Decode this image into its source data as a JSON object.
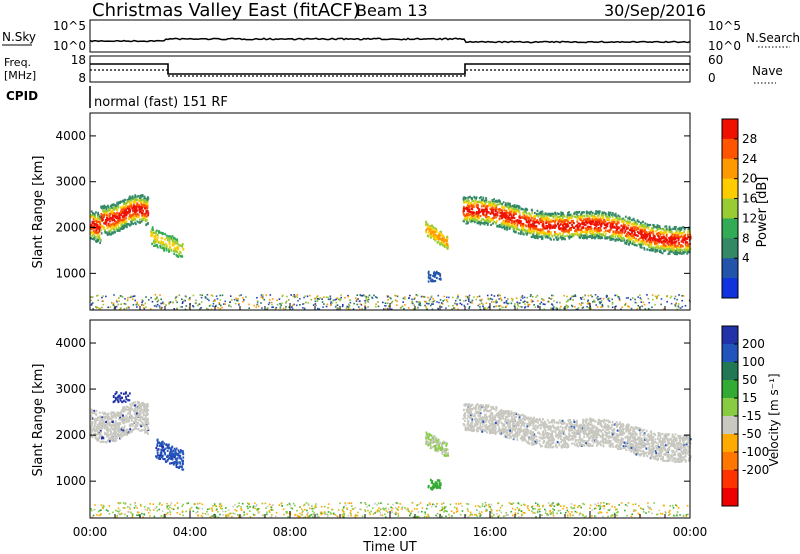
{
  "header": {
    "title": "Christmas Valley East (fitACF)",
    "beam": "Beam 13",
    "date": "30/Sep/2016"
  },
  "colors": {
    "frame": "#000000",
    "dots_noise": "#223399",
    "dots_power_low": "#3355bb",
    "gray_velocity": "#c8c8c0"
  },
  "top_panels": {
    "nsky": {
      "label": "N.Sky",
      "left_ticks": [
        "10^5",
        "10^0"
      ],
      "right_ticks": [
        "10^5",
        "10^0"
      ],
      "right_label": "N.Search"
    },
    "freq": {
      "label_line1": "Freq.",
      "label_line2": "[MHz]",
      "left_ticks": [
        "18",
        "8"
      ],
      "right_ticks": [
        "60",
        "0"
      ],
      "right_label": "Nave"
    },
    "cpid": {
      "label": "CPID",
      "text": "normal (fast) 151 RF"
    }
  },
  "chart_data": [
    {
      "type": "heatmap",
      "title": "",
      "ylabel": "Slant Range [km]",
      "xlabel": "",
      "ylim": [
        200,
        4500
      ],
      "yticks": [
        1000,
        2000,
        3000,
        4000
      ],
      "xlim_hours": [
        0,
        24
      ],
      "colorbar": {
        "label": "Power [dB]",
        "ticks": [
          "28",
          "24",
          "20",
          "16",
          "12",
          "8",
          "4"
        ],
        "colors": [
          "#ee1100",
          "#ff5500",
          "#ff9900",
          "#ffcc00",
          "#99cc33",
          "#33aa55",
          "#338866",
          "#2255aa",
          "#1133dd"
        ]
      }
    },
    {
      "type": "heatmap",
      "title": "",
      "ylabel": "Slant Range [km]",
      "xlabel": "Time UT",
      "ylim": [
        200,
        4500
      ],
      "yticks": [
        1000,
        2000,
        3000,
        4000
      ],
      "xlim_hours": [
        0,
        24
      ],
      "xticks": [
        "00:00",
        "04:00",
        "08:00",
        "12:00",
        "16:00",
        "20:00",
        "00:00"
      ],
      "colorbar": {
        "label": "Velocity [m s⁻¹]",
        "ticks": [
          "200",
          "100",
          "50",
          "15",
          "-15",
          "-50",
          "-100",
          "-200"
        ],
        "colors": [
          "#2233aa",
          "#2255bb",
          "#227755",
          "#33aa33",
          "#88cc44",
          "#c8c8c0",
          "#ffaa00",
          "#ff7700",
          "#ff3300",
          "#ee0000"
        ]
      }
    }
  ]
}
